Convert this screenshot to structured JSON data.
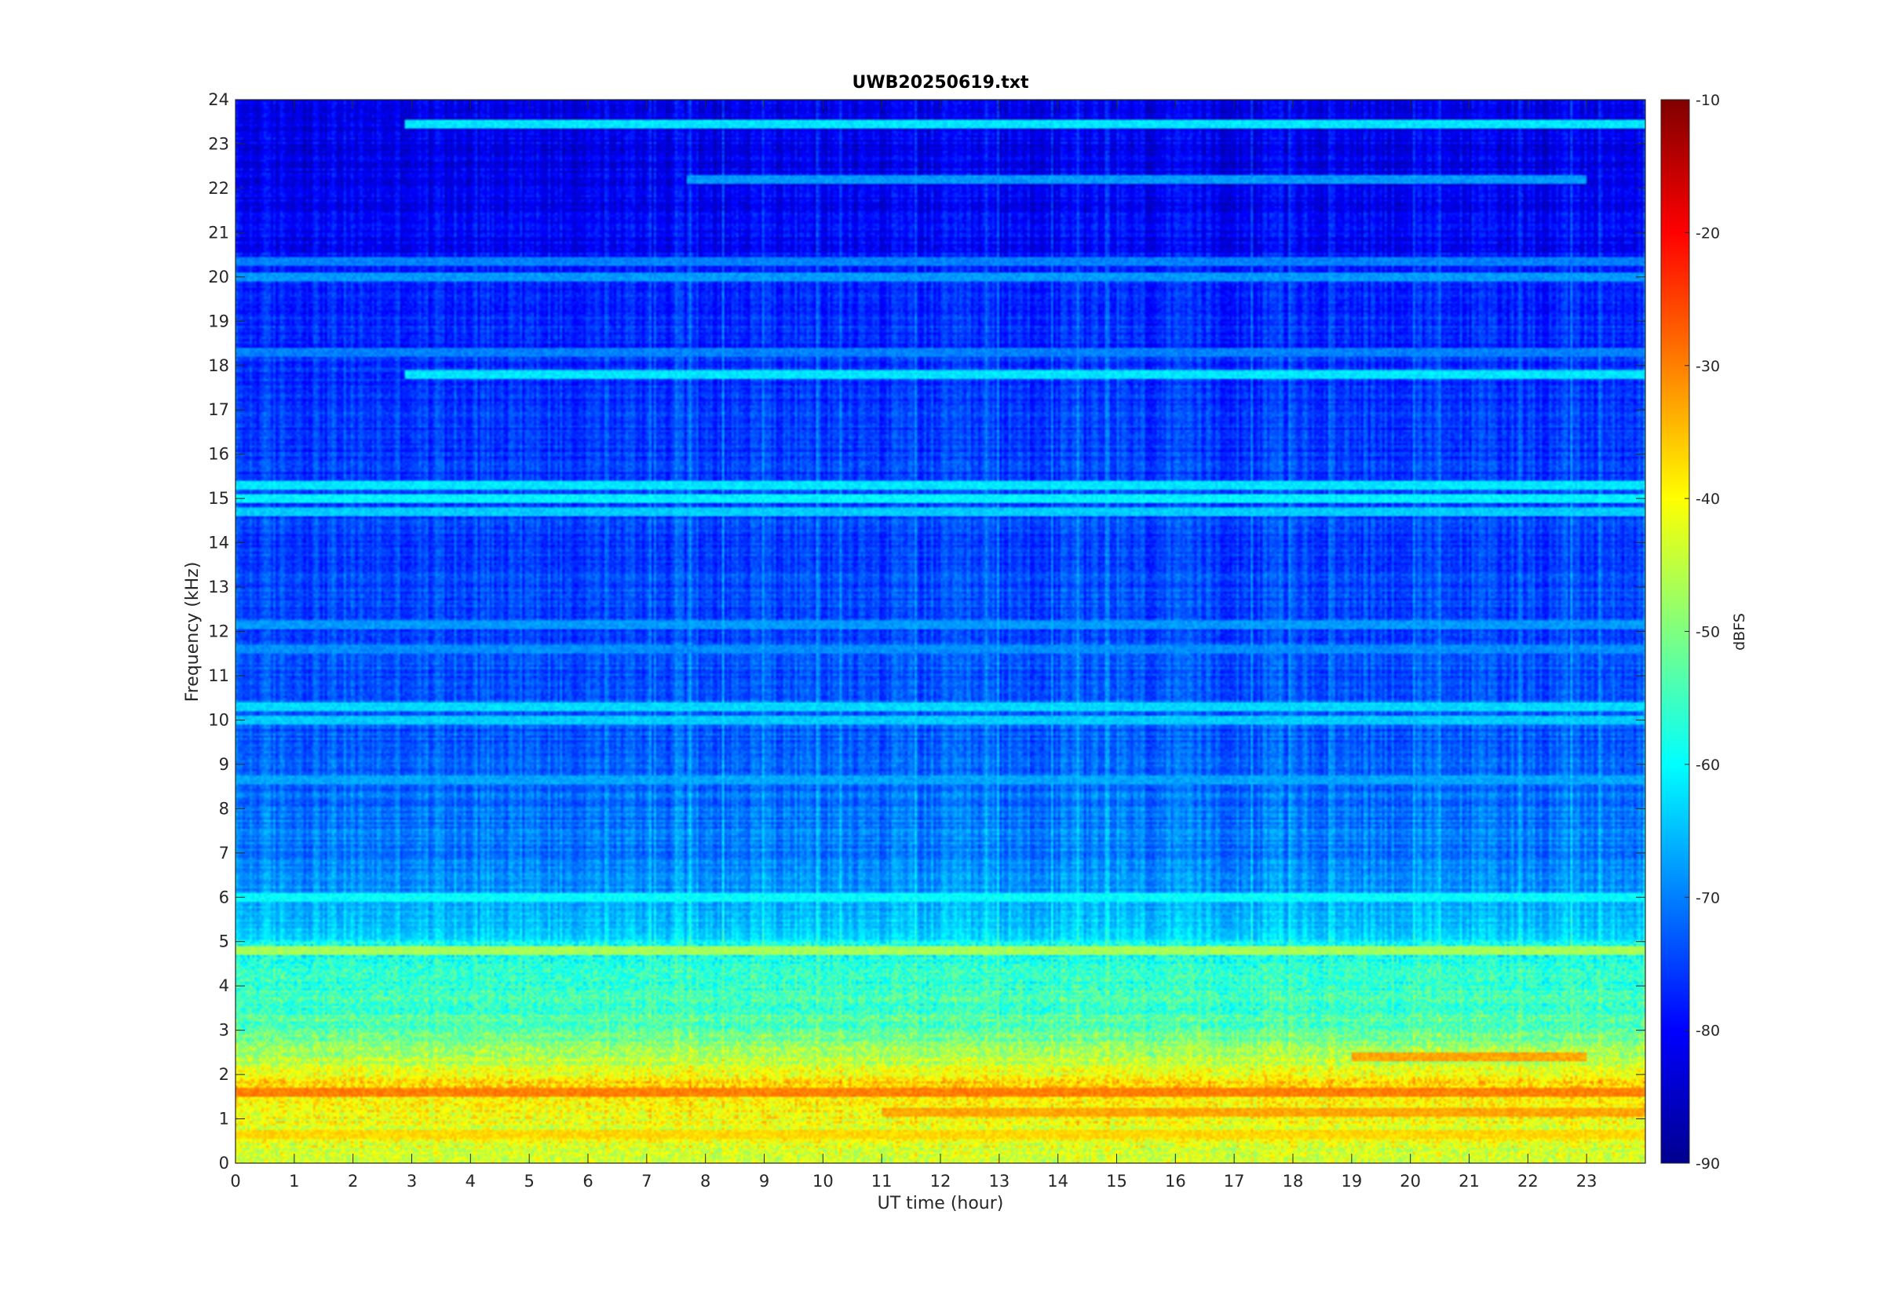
{
  "chart_data": {
    "type": "heatmap",
    "title": "UWB20250619.txt",
    "xlabel": "UT time (hour)",
    "ylabel": "Frequency (kHz)",
    "xlim": [
      0,
      24
    ],
    "ylim": [
      0,
      24
    ],
    "x_ticks": [
      0,
      1,
      2,
      3,
      4,
      5,
      6,
      7,
      8,
      9,
      10,
      11,
      12,
      13,
      14,
      15,
      16,
      17,
      18,
      19,
      20,
      21,
      22,
      23
    ],
    "y_ticks": [
      0,
      1,
      2,
      3,
      4,
      5,
      6,
      7,
      8,
      9,
      10,
      11,
      12,
      13,
      14,
      15,
      16,
      17,
      18,
      19,
      20,
      21,
      22,
      23,
      24
    ],
    "colorbar": {
      "label": "dBFS",
      "range": [
        -90,
        -10
      ],
      "ticks": [
        -90,
        -80,
        -70,
        -60,
        -50,
        -40,
        -30,
        -20,
        -10
      ],
      "colormap": "jet"
    },
    "band_profile": [
      {
        "f": 0.0,
        "db": -44
      },
      {
        "f": 0.5,
        "db": -42
      },
      {
        "f": 1.0,
        "db": -41
      },
      {
        "f": 1.5,
        "db": -38
      },
      {
        "f": 1.8,
        "db": -37
      },
      {
        "f": 2.0,
        "db": -42
      },
      {
        "f": 2.5,
        "db": -47
      },
      {
        "f": 3.0,
        "db": -53
      },
      {
        "f": 4.0,
        "db": -56
      },
      {
        "f": 4.8,
        "db": -58
      },
      {
        "f": 5.2,
        "db": -63
      },
      {
        "f": 6.0,
        "db": -68
      },
      {
        "f": 7.0,
        "db": -70
      },
      {
        "f": 8.0,
        "db": -71
      },
      {
        "f": 9.5,
        "db": -73
      },
      {
        "f": 12.0,
        "db": -74
      },
      {
        "f": 14.0,
        "db": -75
      },
      {
        "f": 17.0,
        "db": -76
      },
      {
        "f": 20.0,
        "db": -77
      },
      {
        "f": 20.6,
        "db": -80
      },
      {
        "f": 22.0,
        "db": -81
      },
      {
        "f": 24.0,
        "db": -82
      }
    ],
    "tones": [
      {
        "f": 23.45,
        "db": -62,
        "from": 2.9,
        "to": 24
      },
      {
        "f": 22.2,
        "db": -68,
        "from": 7.7,
        "to": 23
      },
      {
        "f": 20.0,
        "db": -68,
        "from": 0,
        "to": 24
      },
      {
        "f": 20.35,
        "db": -70,
        "from": 0,
        "to": 24
      },
      {
        "f": 18.3,
        "db": -70,
        "from": 0,
        "to": 24
      },
      {
        "f": 17.8,
        "db": -62,
        "from": 2.9,
        "to": 24
      },
      {
        "f": 15.3,
        "db": -62,
        "from": 0,
        "to": 24
      },
      {
        "f": 15.0,
        "db": -61,
        "from": 0,
        "to": 24
      },
      {
        "f": 14.7,
        "db": -64,
        "from": 0,
        "to": 24
      },
      {
        "f": 12.15,
        "db": -68,
        "from": 0,
        "to": 24
      },
      {
        "f": 11.6,
        "db": -69,
        "from": 0,
        "to": 24
      },
      {
        "f": 10.3,
        "db": -63,
        "from": 0,
        "to": 24
      },
      {
        "f": 10.0,
        "db": -64,
        "from": 0,
        "to": 24
      },
      {
        "f": 8.65,
        "db": -67,
        "from": 0,
        "to": 24
      },
      {
        "f": 6.0,
        "db": -60,
        "from": 0,
        "to": 24
      },
      {
        "f": 4.8,
        "db": -47,
        "from": 0,
        "to": 24
      },
      {
        "f": 1.6,
        "db": -30,
        "from": 0,
        "to": 24
      },
      {
        "f": 1.15,
        "db": -33,
        "from": 11.0,
        "to": 24
      },
      {
        "f": 0.65,
        "db": -37,
        "from": 0,
        "to": 24
      },
      {
        "f": 2.4,
        "db": -33,
        "from": 19.0,
        "to": 23.0
      }
    ]
  }
}
